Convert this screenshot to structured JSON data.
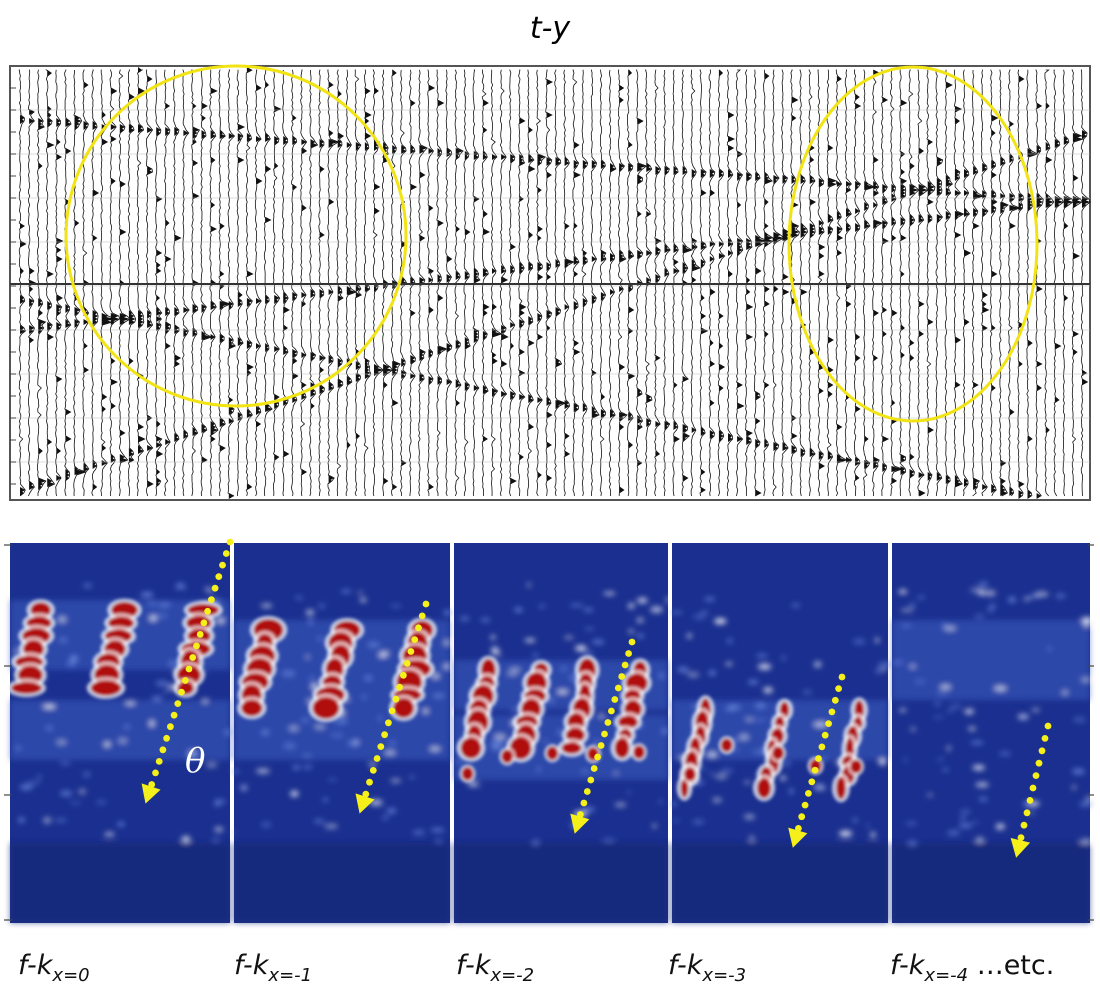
{
  "top_panel": {
    "title": "t-y",
    "highlight_color": "#f2e312",
    "trace_color": "#111111"
  },
  "bottom_panel": {
    "theta_label": "θ",
    "background_color": "#1a2f8f",
    "energy_color": "#b00a10",
    "arrow_color": "#f5ef1a",
    "panels": [
      {
        "prefix": "f-k",
        "subscript": "x=0",
        "suffix": ""
      },
      {
        "prefix": "f-k",
        "subscript": "x=-1",
        "suffix": ""
      },
      {
        "prefix": "f-k",
        "subscript": "x=-2",
        "suffix": ""
      },
      {
        "prefix": "f-k",
        "subscript": "x=-3",
        "suffix": ""
      },
      {
        "prefix": "f-k",
        "subscript": "x=-4",
        "suffix": " …etc."
      }
    ]
  }
}
